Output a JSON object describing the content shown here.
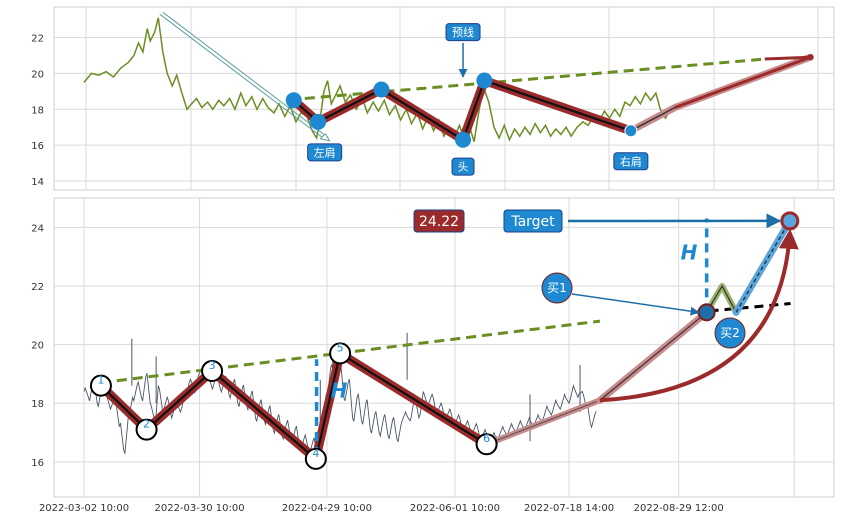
{
  "chart_data": [
    {
      "type": "line",
      "panel": "top",
      "ylim": [
        13.5,
        23.7
      ],
      "yticks": [
        14,
        16,
        18,
        20,
        22
      ],
      "grid": true,
      "x": {
        "start": 0,
        "end": 100
      },
      "colors": {
        "price": "#6b8e23",
        "pattern": "#9b2b2b",
        "neckline": "#6b8e23",
        "marker": "#1e88d0",
        "box": "#1e88d0"
      },
      "price_series": [
        [
          0,
          19.5
        ],
        [
          1,
          20.0
        ],
        [
          2,
          19.9
        ],
        [
          3,
          20.1
        ],
        [
          4,
          19.8
        ],
        [
          5,
          20.3
        ],
        [
          6,
          20.6
        ],
        [
          6.8,
          21.0
        ],
        [
          7.4,
          21.7
        ],
        [
          8,
          21.2
        ],
        [
          8.6,
          22.5
        ],
        [
          9,
          21.8
        ],
        [
          9.6,
          22.3
        ],
        [
          10.1,
          23.1
        ],
        [
          10.7,
          21.2
        ],
        [
          11.3,
          20.0
        ],
        [
          12,
          19.3
        ],
        [
          12.6,
          19.9
        ],
        [
          13.3,
          18.9
        ],
        [
          14,
          18.0
        ],
        [
          14.6,
          18.3
        ],
        [
          15.3,
          18.6
        ],
        [
          16,
          18.1
        ],
        [
          16.8,
          18.4
        ],
        [
          17.5,
          18.0
        ],
        [
          18.3,
          18.5
        ],
        [
          19,
          18.2
        ],
        [
          19.8,
          18.6
        ],
        [
          20.5,
          18.0
        ],
        [
          21.3,
          18.9
        ],
        [
          22,
          18.2
        ],
        [
          22.8,
          18.7
        ],
        [
          23.5,
          18.0
        ],
        [
          24.3,
          18.6
        ],
        [
          25,
          18.1
        ],
        [
          25.8,
          17.8
        ],
        [
          26.5,
          18.3
        ],
        [
          27.3,
          17.6
        ],
        [
          28,
          18.2
        ],
        [
          28.8,
          17.3
        ],
        [
          29.5,
          17.8
        ],
        [
          30.3,
          17.6
        ],
        [
          31,
          16.8
        ],
        [
          31.6,
          16.4
        ],
        [
          32.1,
          17.5
        ],
        [
          32.6,
          19.0
        ],
        [
          33.1,
          19.6
        ],
        [
          33.6,
          18.3
        ],
        [
          34.2,
          18.8
        ],
        [
          34.8,
          19.3
        ],
        [
          35.5,
          18.4
        ],
        [
          36.2,
          18.8
        ],
        [
          37,
          18.0
        ],
        [
          37.8,
          18.6
        ],
        [
          38.5,
          17.8
        ],
        [
          39.3,
          18.4
        ],
        [
          40,
          17.9
        ],
        [
          40.8,
          18.5
        ],
        [
          41.5,
          17.7
        ],
        [
          42.3,
          18.2
        ],
        [
          43,
          17.4
        ],
        [
          43.8,
          18.0
        ],
        [
          44.5,
          17.2
        ],
        [
          45.3,
          17.8
        ],
        [
          46,
          16.9
        ],
        [
          46.8,
          17.6
        ],
        [
          47.5,
          16.8
        ],
        [
          48.2,
          17.4
        ],
        [
          48.9,
          16.5
        ],
        [
          49.6,
          17.0
        ],
        [
          50.3,
          16.4
        ],
        [
          51,
          17.1
        ],
        [
          51.7,
          16.3
        ],
        [
          52.4,
          17.0
        ],
        [
          53,
          16.2
        ],
        [
          53.7,
          18.0
        ],
        [
          54.3,
          19.2
        ],
        [
          55,
          18.4
        ],
        [
          55.7,
          17.0
        ],
        [
          56.4,
          16.4
        ],
        [
          57.1,
          17.1
        ],
        [
          57.8,
          16.3
        ],
        [
          58.5,
          16.9
        ],
        [
          59.2,
          16.5
        ],
        [
          59.9,
          17.0
        ],
        [
          60.6,
          16.6
        ],
        [
          61.3,
          17.2
        ],
        [
          62,
          16.7
        ],
        [
          62.7,
          17.1
        ],
        [
          63.4,
          16.5
        ],
        [
          64.1,
          16.9
        ],
        [
          64.8,
          16.6
        ],
        [
          65.5,
          17.0
        ],
        [
          66.2,
          16.5
        ],
        [
          67,
          17.0
        ],
        [
          67.8,
          17.3
        ],
        [
          68.5,
          17.1
        ],
        [
          69.2,
          17.6
        ],
        [
          70,
          17.3
        ],
        [
          70.7,
          17.9
        ],
        [
          71.4,
          17.5
        ],
        [
          72.1,
          18.0
        ],
        [
          72.8,
          17.6
        ],
        [
          73.5,
          18.4
        ],
        [
          74.2,
          18.2
        ],
        [
          74.9,
          18.7
        ],
        [
          75.6,
          18.3
        ],
        [
          76.3,
          18.9
        ],
        [
          77,
          18.5
        ],
        [
          77.7,
          18.9
        ],
        [
          78.3,
          18.0
        ],
        [
          79,
          17.5
        ],
        [
          79.6,
          17.9
        ]
      ],
      "pattern_points": [
        {
          "x": 28.5,
          "y": 18.5
        },
        {
          "x": 31.8,
          "y": 17.3
        },
        {
          "x": 40.4,
          "y": 19.1
        },
        {
          "x": 51.5,
          "y": 16.3
        },
        {
          "x": 54.4,
          "y": 19.6
        },
        {
          "x": 74.3,
          "y": 16.8
        },
        {
          "x": 80.3,
          "y": 18.1
        },
        {
          "x": 98.7,
          "y": 20.9
        }
      ],
      "neckline": [
        [
          30,
          18.6
        ],
        [
          92.5,
          20.8
        ]
      ],
      "labels": [
        {
          "text": "左肩",
          "x": 32.7,
          "y": 15.6
        },
        {
          "text": "头",
          "x": 51.5,
          "y": 14.8
        },
        {
          "text": "右肩",
          "x": 74.3,
          "y": 15.1
        },
        {
          "text": "预线",
          "x": 51.5,
          "y": 22.3
        }
      ]
    },
    {
      "type": "line",
      "panel": "bottom",
      "ylim": [
        14.8,
        25.0
      ],
      "yticks": [
        16,
        18,
        20,
        22,
        24
      ],
      "grid": true,
      "x": {
        "start": 0,
        "end": 100
      },
      "xtick_labels": [
        "2022-03-02 10:00",
        "2022-03-30 10:00",
        "2022-04-29 10:00",
        "2022-06-01 10:00",
        "2022-07-18 14:00",
        "2022-08-29 12:00"
      ],
      "xtick_positions": [
        0,
        15.7,
        33,
        50.4,
        65.9,
        80.8
      ],
      "colors": {
        "price": "#4a5568",
        "pattern": "#9b2b2b",
        "neckline": "#6b8e23",
        "projection": "#1e88d0",
        "target_box": "#1e88d0",
        "value_box": "#9b2b2b"
      },
      "price_series": [
        [
          0,
          18.4
        ],
        [
          0.6,
          18.2
        ],
        [
          1.2,
          18.7
        ],
        [
          1.8,
          18.0
        ],
        [
          2.4,
          18.6
        ],
        [
          3,
          18.3
        ],
        [
          3.6,
          17.8
        ],
        [
          4.2,
          18.1
        ],
        [
          4.8,
          17.2
        ],
        [
          5.4,
          16.4
        ],
        [
          6,
          17.5
        ],
        [
          6.6,
          18.2
        ],
        [
          7.2,
          18.6
        ],
        [
          7.8,
          18.2
        ],
        [
          8.4,
          18.9
        ],
        [
          9,
          18.0
        ],
        [
          9.6,
          17.4
        ],
        [
          10.1,
          18.6
        ],
        [
          10.7,
          17.7
        ],
        [
          11.3,
          18.2
        ],
        [
          11.9,
          17.5
        ],
        [
          12.5,
          18.1
        ],
        [
          13.1,
          17.7
        ],
        [
          13.7,
          18.3
        ],
        [
          14.3,
          18.7
        ],
        [
          14.9,
          18.5
        ],
        [
          15.5,
          18.9
        ],
        [
          16.1,
          19.2
        ],
        [
          16.7,
          18.9
        ],
        [
          17.3,
          18.6
        ],
        [
          17.9,
          18.9
        ],
        [
          18.5,
          18.5
        ],
        [
          19.1,
          18.8
        ],
        [
          19.7,
          18.3
        ],
        [
          20.3,
          18.7
        ],
        [
          20.9,
          18.0
        ],
        [
          21.5,
          18.5
        ],
        [
          22.1,
          17.9
        ],
        [
          22.7,
          18.3
        ],
        [
          23.3,
          17.5
        ],
        [
          23.9,
          18.0
        ],
        [
          24.5,
          17.4
        ],
        [
          25.1,
          17.8
        ],
        [
          25.7,
          17.1
        ],
        [
          26.3,
          17.5
        ],
        [
          26.9,
          16.9
        ],
        [
          27.5,
          17.3
        ],
        [
          28.1,
          16.8
        ],
        [
          28.7,
          17.1
        ],
        [
          29.3,
          16.5
        ],
        [
          29.9,
          16.8
        ],
        [
          30.5,
          16.4
        ],
        [
          31.1,
          16.7
        ],
        [
          31.7,
          16.2
        ],
        [
          32.3,
          17.2
        ],
        [
          32.9,
          18.3
        ],
        [
          33.5,
          19.2
        ],
        [
          34.1,
          18.6
        ],
        [
          34.7,
          19.3
        ],
        [
          35.3,
          18.2
        ],
        [
          35.9,
          18.7
        ],
        [
          36.5,
          17.5
        ],
        [
          37.1,
          18.2
        ],
        [
          37.7,
          17.4
        ],
        [
          38.3,
          18.0
        ],
        [
          38.9,
          17.1
        ],
        [
          39.5,
          17.6
        ],
        [
          40.1,
          17.0
        ],
        [
          40.7,
          17.5
        ],
        [
          41.3,
          16.9
        ],
        [
          41.9,
          17.4
        ],
        [
          42.5,
          16.8
        ],
        [
          43.1,
          17.3
        ],
        [
          43.7,
          17.7
        ],
        [
          44.3,
          17.4
        ],
        [
          44.9,
          18.2
        ],
        [
          45.5,
          17.5
        ],
        [
          46.1,
          18.4
        ],
        [
          46.7,
          17.9
        ],
        [
          47.3,
          18.3
        ],
        [
          47.9,
          17.6
        ],
        [
          48.5,
          18.0
        ],
        [
          49.1,
          17.4
        ],
        [
          49.7,
          17.8
        ],
        [
          50.3,
          17.2
        ],
        [
          50.9,
          17.6
        ],
        [
          51.5,
          17.0
        ],
        [
          52.1,
          17.4
        ],
        [
          52.7,
          16.9
        ],
        [
          53.3,
          17.3
        ],
        [
          53.9,
          16.7
        ],
        [
          54.5,
          17.1
        ],
        [
          55.1,
          16.6
        ],
        [
          55.7,
          17.0
        ],
        [
          56.3,
          16.8
        ],
        [
          56.9,
          17.2
        ],
        [
          57.5,
          16.9
        ],
        [
          58.1,
          17.3
        ],
        [
          58.7,
          17.0
        ],
        [
          59.3,
          17.4
        ],
        [
          59.9,
          17.1
        ],
        [
          60.5,
          17.5
        ],
        [
          61.1,
          17.2
        ],
        [
          61.7,
          17.6
        ],
        [
          62.3,
          17.4
        ],
        [
          62.9,
          17.9
        ],
        [
          63.5,
          17.6
        ],
        [
          64.1,
          18.1
        ],
        [
          64.7,
          17.8
        ],
        [
          65.3,
          18.3
        ],
        [
          65.9,
          18.0
        ],
        [
          66.5,
          18.6
        ],
        [
          67.1,
          18.2
        ],
        [
          67.7,
          18.4
        ],
        [
          68.2,
          17.9
        ],
        [
          68.8,
          17.3
        ],
        [
          69.4,
          17.6
        ]
      ],
      "spikes": [
        [
          6.5,
          20.2
        ],
        [
          9.8,
          19.6
        ],
        [
          32.1,
          18.8
        ],
        [
          33.8,
          19.9
        ],
        [
          43.9,
          20.4
        ],
        [
          60.6,
          18.3
        ],
        [
          67.4,
          19.3
        ]
      ],
      "pattern_points": [
        {
          "x": 2.3,
          "y": 18.6,
          "label": "1"
        },
        {
          "x": 8.5,
          "y": 17.1,
          "label": "2"
        },
        {
          "x": 17.4,
          "y": 19.1,
          "label": "3"
        },
        {
          "x": 31.5,
          "y": 16.1,
          "label": "4"
        },
        {
          "x": 34.8,
          "y": 19.7,
          "label": "5"
        },
        {
          "x": 54.7,
          "y": 16.6,
          "label": "6"
        },
        {
          "x": 70.1,
          "y": 18.1,
          "label": ""
        }
      ],
      "neckline": [
        [
          2.3,
          18.7
        ],
        [
          70.1,
          20.8
        ]
      ],
      "breakout": {
        "x": 84.6,
        "y": 21.1
      },
      "target": {
        "x": 95.9,
        "y": 24.22
      },
      "pullback": [
        [
          84.6,
          21.1
        ],
        [
          86.7,
          22.0
        ],
        [
          88.6,
          21.1
        ]
      ],
      "projection_line": [
        [
          84.6,
          21.1
        ],
        [
          96.0,
          21.4
        ]
      ],
      "H_lines": [
        {
          "x": 31.6,
          "y0": 16.2,
          "y1": 19.5
        },
        {
          "x": 84.6,
          "y0": 21.1,
          "y1": 24.3
        }
      ],
      "labels": {
        "value": "24.22",
        "target": "Target",
        "H_left": "H",
        "H_right": "H",
        "buy1": "买1",
        "buy2": "买2"
      }
    }
  ]
}
